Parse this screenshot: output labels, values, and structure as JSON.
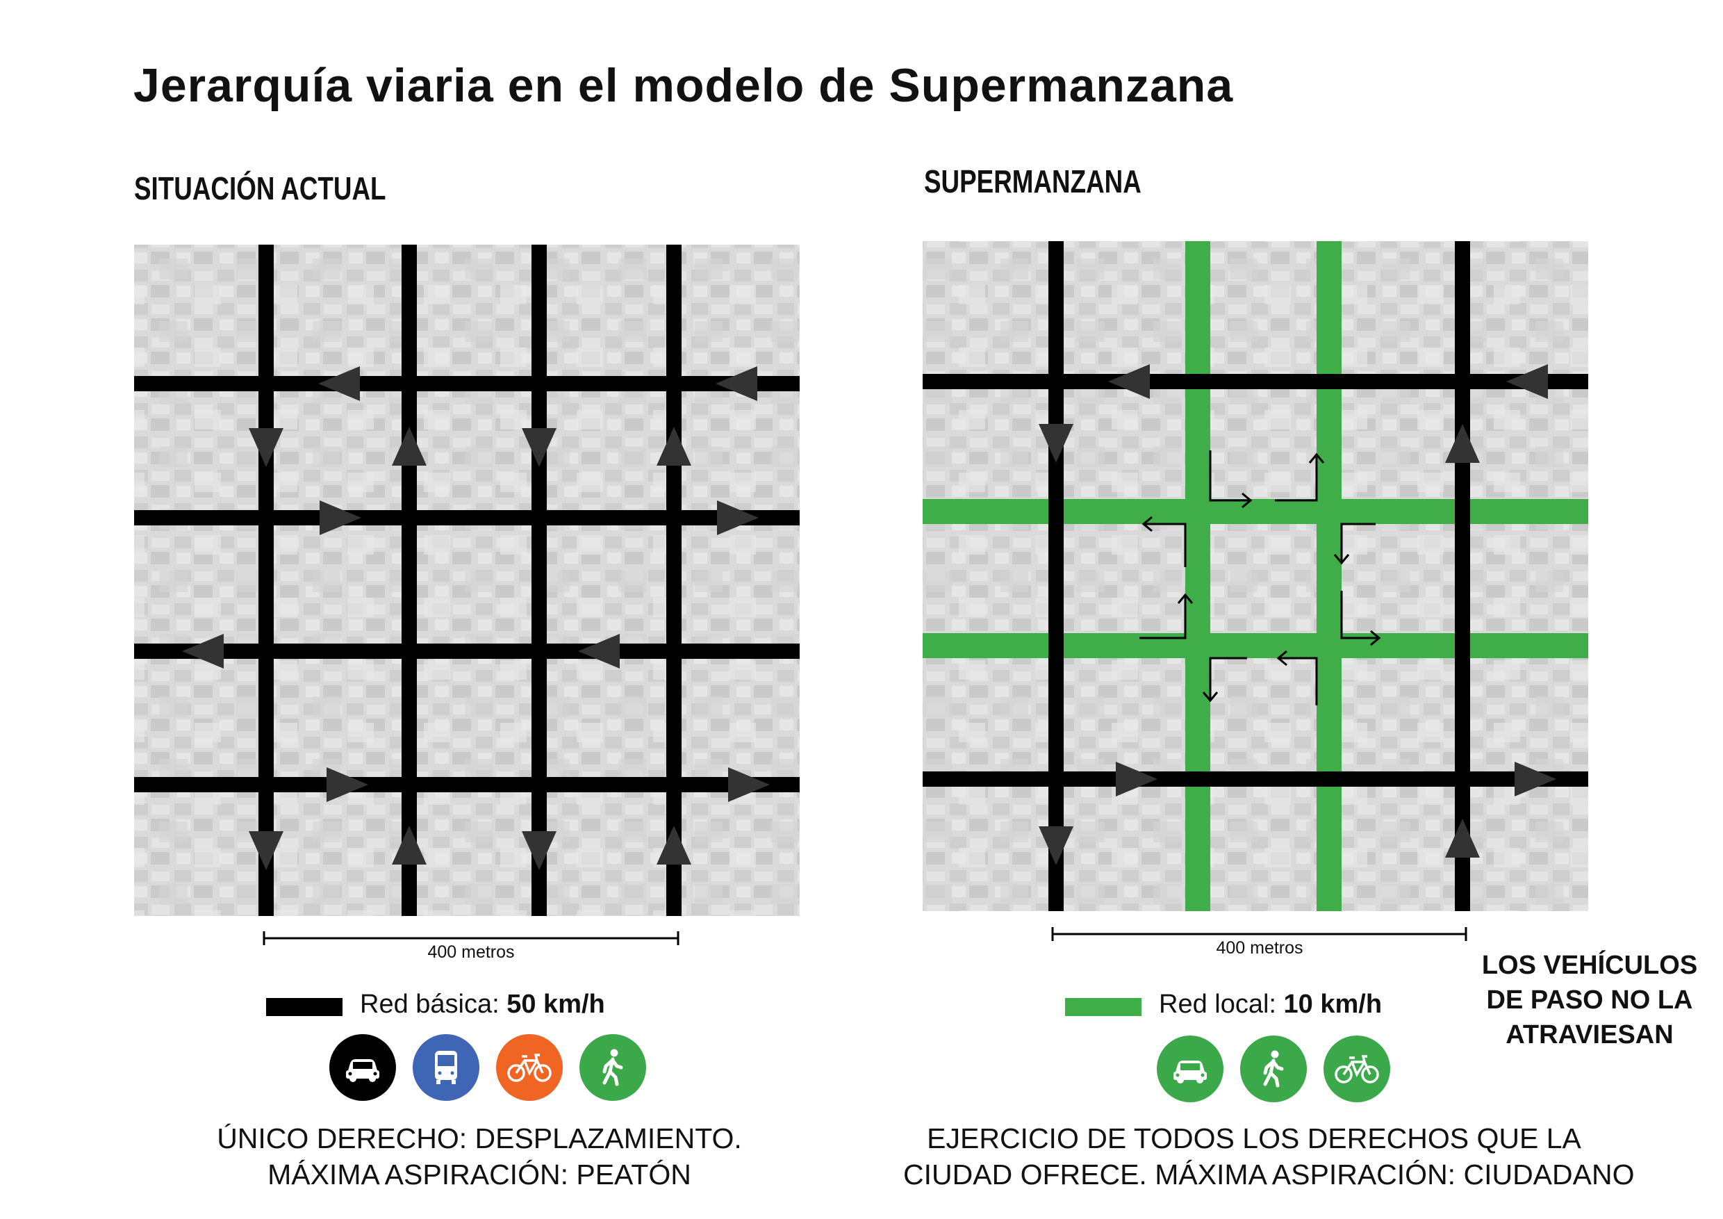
{
  "title": "Jerarquía viaria en el modelo de Supermanzana",
  "left": {
    "heading": "SITUACIÓN ACTUAL",
    "scale_label": "400 metros",
    "legend_label": "Red básica:",
    "legend_value": "50 km/h",
    "legend_color": "#000000",
    "icons": [
      {
        "name": "car-icon",
        "bg": "#000000"
      },
      {
        "name": "bus-icon",
        "bg": "#3f66b5"
      },
      {
        "name": "bicycle-icon",
        "bg": "#f06524"
      },
      {
        "name": "pedestrian-icon",
        "bg": "#3ba84a"
      }
    ],
    "caption_line1": "ÚNICO DERECHO: DESPLAZAMIENTO.",
    "caption_line2": "MÁXIMA ASPIRACIÓN: PEATÓN"
  },
  "right": {
    "heading": "SUPERMANZANA",
    "scale_label": "400 metros",
    "legend_label": "Red local:",
    "legend_value": "10 km/h",
    "legend_color": "#3fae49",
    "icons": [
      {
        "name": "car-icon",
        "bg": "#3ba84a"
      },
      {
        "name": "pedestrian-icon",
        "bg": "#3ba84a"
      },
      {
        "name": "bicycle-icon",
        "bg": "#3ba84a"
      }
    ],
    "caption_line1": "EJERCICIO DE TODOS LOS DERECHOS QUE LA",
    "caption_line2": "CIUDAD OFRECE. MÁXIMA ASPIRACIÓN: CIUDADANO"
  },
  "side_note_lines": [
    "LOS VEHÍCULOS",
    "DE PASO NO LA",
    "ATRAVIESAN"
  ],
  "colors": {
    "road_black": "#000000",
    "road_green": "#3fae49",
    "arrow": "#333333",
    "map_bg": "#c9c9c9"
  }
}
